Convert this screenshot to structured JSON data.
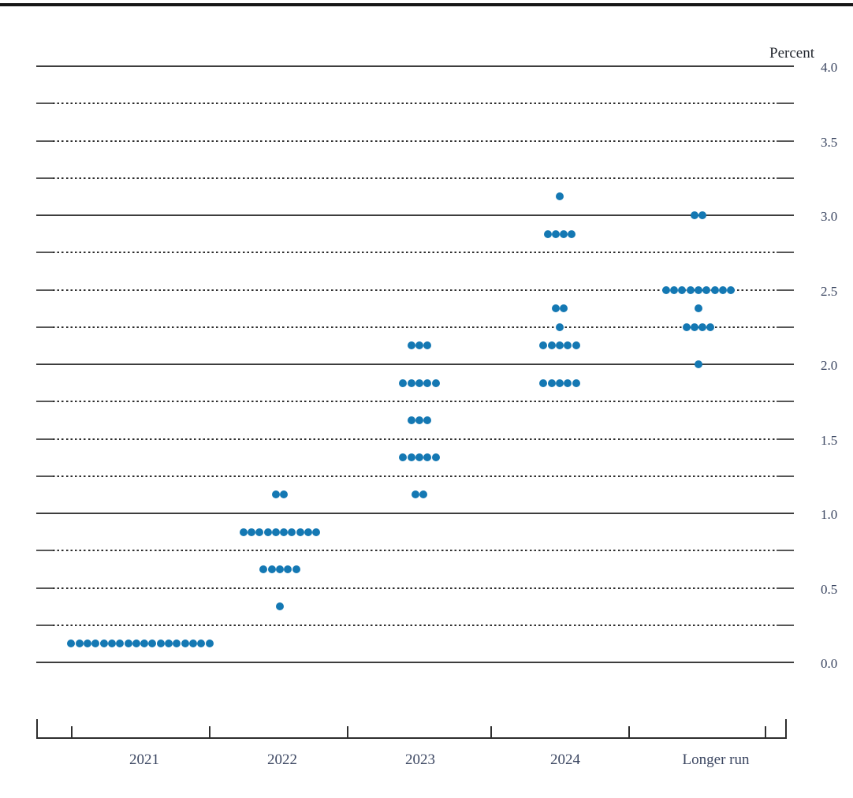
{
  "chart_data": {
    "type": "scatter",
    "subtype": "fomc-dot-plot",
    "ylabel": "Percent",
    "ylim": [
      0.0,
      4.0
    ],
    "y_tick_step": 0.5,
    "y_tick_labels": [
      "4.0",
      "3.5",
      "3.0",
      "2.5",
      "2.0",
      "1.5",
      "1.0",
      "0.5",
      "0.0"
    ],
    "gridlines": {
      "solid_at": [
        0.0,
        1.0,
        2.0,
        3.0,
        4.0
      ],
      "dotted_step": 0.25,
      "legend": "grid on; solid rules at whole percents, dotted rules at quarter percents; tick labels on right side"
    },
    "categories": [
      "2021",
      "2022",
      "2023",
      "2024",
      "Longer run"
    ],
    "columns": [
      {
        "category": "2021",
        "dots": [
          {
            "rate": 0.125,
            "count": 18
          }
        ]
      },
      {
        "category": "2022",
        "dots": [
          {
            "rate": 1.125,
            "count": 2
          },
          {
            "rate": 0.875,
            "count": 10
          },
          {
            "rate": 0.625,
            "count": 5
          },
          {
            "rate": 0.375,
            "count": 1
          }
        ]
      },
      {
        "category": "2023",
        "dots": [
          {
            "rate": 2.125,
            "count": 3
          },
          {
            "rate": 1.875,
            "count": 5
          },
          {
            "rate": 1.625,
            "count": 3
          },
          {
            "rate": 1.375,
            "count": 5
          },
          {
            "rate": 1.125,
            "count": 2
          }
        ]
      },
      {
        "category": "2024",
        "dots": [
          {
            "rate": 3.125,
            "count": 1
          },
          {
            "rate": 2.875,
            "count": 4
          },
          {
            "rate": 2.375,
            "count": 2
          },
          {
            "rate": 2.25,
            "count": 1
          },
          {
            "rate": 2.125,
            "count": 5
          },
          {
            "rate": 1.875,
            "count": 5
          }
        ]
      },
      {
        "category": "Longer run",
        "dots": [
          {
            "rate": 3.0,
            "count": 2
          },
          {
            "rate": 2.5,
            "count": 9
          },
          {
            "rate": 2.375,
            "count": 1
          },
          {
            "rate": 2.25,
            "count": 4
          },
          {
            "rate": 2.0,
            "count": 1
          }
        ]
      }
    ],
    "dot_color": "#1478b3"
  }
}
